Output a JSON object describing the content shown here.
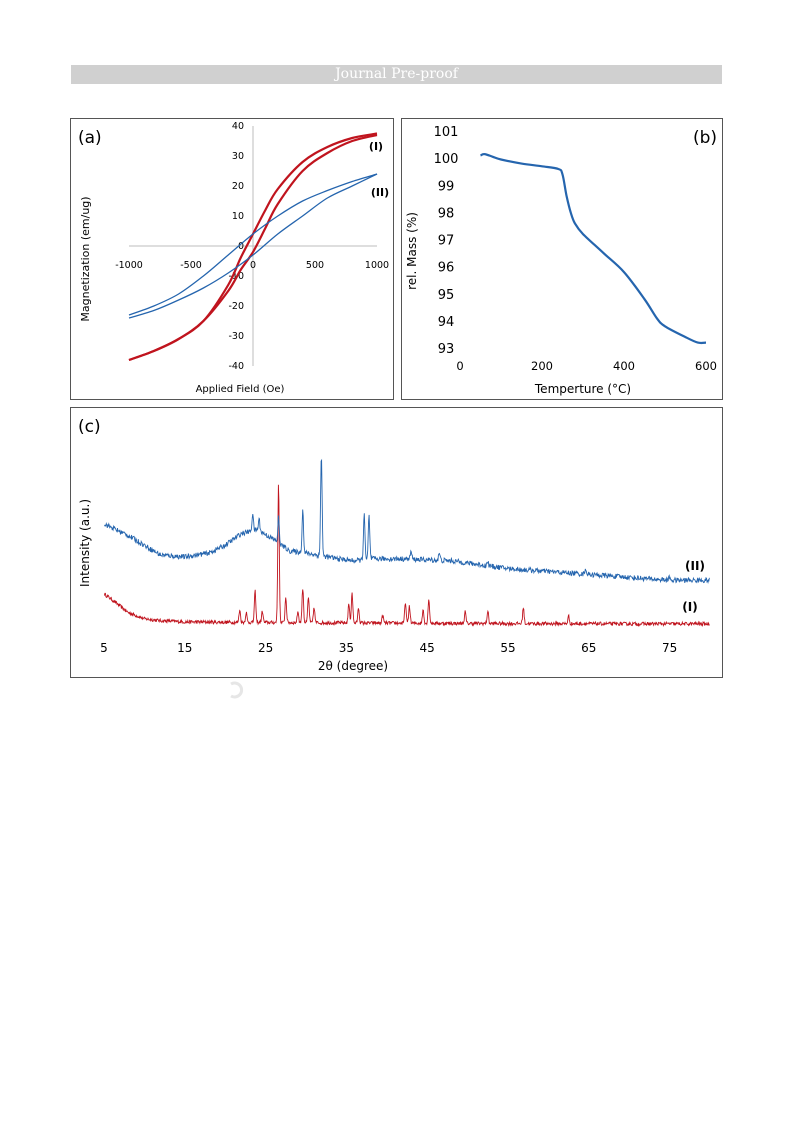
{
  "header": {
    "banner_text": "Journal Pre-proof"
  },
  "colors": {
    "series_I": "#c0141e",
    "series_II": "#2565ae",
    "banner": "#d0d0d0",
    "frame": "#555555"
  },
  "chart_data": [
    {
      "panel_label": "(a)",
      "type": "line",
      "xlabel": "Applied Field (Oe)",
      "ylabel": "Magnetization (em/ug)",
      "xlim": [
        -1000,
        1000
      ],
      "ylim": [
        -40,
        40
      ],
      "xticks": [
        -1000,
        -500,
        0,
        500,
        1000
      ],
      "xtick_labels": [
        "-1000",
        "-500",
        "0",
        "500",
        "1000"
      ],
      "yticks": [
        -40,
        -30,
        -20,
        -10,
        0,
        10,
        20,
        30,
        40
      ],
      "ytick_labels": [
        "-40",
        "-30",
        "-20",
        "-10",
        "0",
        "10",
        "20",
        "30",
        "40"
      ],
      "grid": false,
      "series": [
        {
          "name": "(I)",
          "color": "#c0141e",
          "ascending_x": [
            -1000,
            -800,
            -600,
            -400,
            -200,
            -100,
            0,
            100,
            200,
            400,
            600,
            800,
            1000
          ],
          "ascending_y": [
            -38,
            -35,
            -31,
            -25,
            -15,
            -8,
            -2,
            6,
            14,
            25,
            31,
            35,
            37
          ],
          "descending_x": [
            1000,
            800,
            600,
            400,
            200,
            100,
            0,
            -100,
            -200,
            -400,
            -600,
            -800,
            -1000
          ],
          "descending_y": [
            37.5,
            36,
            33,
            28,
            19,
            12,
            4,
            -4,
            -13,
            -25,
            -31,
            -35,
            -38
          ]
        },
        {
          "name": "(II)",
          "color": "#2565ae",
          "ascending_x": [
            -1000,
            -800,
            -600,
            -400,
            -200,
            0,
            200,
            400,
            600,
            800,
            1000
          ],
          "ascending_y": [
            -24,
            -21.5,
            -18,
            -14,
            -9,
            -3,
            4,
            10,
            16,
            20,
            24
          ],
          "descending_x": [
            1000,
            800,
            600,
            400,
            200,
            0,
            -200,
            -400,
            -600,
            -800,
            -1000
          ],
          "descending_y": [
            24,
            21.5,
            18.5,
            15,
            10,
            4,
            -3,
            -10,
            -16,
            -20,
            -23
          ]
        }
      ]
    },
    {
      "panel_label": "(b)",
      "type": "line",
      "xlabel": "Temperture (°C)",
      "ylabel": "rel. Mass (%)",
      "xlim": [
        0,
        600
      ],
      "ylim": [
        93,
        101
      ],
      "xticks": [
        0,
        200,
        400,
        600
      ],
      "xtick_labels": [
        "0",
        "200",
        "400",
        "600"
      ],
      "yticks": [
        93,
        94,
        95,
        96,
        97,
        98,
        99,
        100,
        101
      ],
      "ytick_labels": [
        "93",
        "94",
        "95",
        "96",
        "97",
        "98",
        "99",
        "100",
        "101"
      ],
      "grid": false,
      "series": [
        {
          "color": "#2565ae",
          "x": [
            50,
            60,
            80,
            100,
            150,
            200,
            240,
            250,
            260,
            270,
            280,
            300,
            350,
            400,
            450,
            480,
            500,
            550,
            580,
            600
          ],
          "y": [
            100.1,
            100.15,
            100.05,
            99.95,
            99.8,
            99.7,
            99.6,
            99.4,
            98.6,
            98.0,
            97.6,
            97.2,
            96.5,
            95.8,
            94.8,
            94.1,
            93.8,
            93.4,
            93.2,
            93.2
          ]
        }
      ]
    },
    {
      "panel_label": "(c)",
      "type": "line",
      "xlabel": "2θ (degree)",
      "ylabel": "Intensity (a.u.)",
      "xlim": [
        5,
        80
      ],
      "xticks": [
        5,
        15,
        25,
        35,
        45,
        55,
        65,
        75
      ],
      "xtick_labels": [
        "5",
        "15",
        "25",
        "35",
        "45",
        "55",
        "65",
        "75"
      ],
      "y_axis_values_shown": false,
      "grid": false,
      "series": [
        {
          "name": "(I)",
          "color": "#c0141e",
          "baseline_x": [
            5,
            6,
            8,
            10,
            12,
            15,
            20,
            30,
            40,
            50,
            60,
            70,
            80
          ],
          "baseline_y": [
            8,
            6.5,
            3.2,
            1.6,
            1.1,
            0.8,
            0.7,
            0.6,
            0.5,
            0.4,
            0.35,
            0.3,
            0.3
          ],
          "peaks": [
            [
              21.8,
              3.3
            ],
            [
              22.6,
              2.6
            ],
            [
              23.7,
              8.0
            ],
            [
              24.6,
              3.0
            ],
            [
              26.6,
              36.0
            ],
            [
              27.5,
              6.5
            ],
            [
              29.0,
              3.0
            ],
            [
              29.6,
              9.0
            ],
            [
              30.3,
              6.5
            ],
            [
              31.0,
              4.0
            ],
            [
              35.3,
              5.0
            ],
            [
              35.7,
              8.0
            ],
            [
              36.5,
              4.0
            ],
            [
              39.5,
              2.0
            ],
            [
              42.3,
              5.5
            ],
            [
              42.8,
              4.5
            ],
            [
              44.5,
              3.5
            ],
            [
              45.2,
              6.5
            ],
            [
              49.7,
              3.0
            ],
            [
              52.5,
              3.2
            ],
            [
              56.9,
              4.2
            ],
            [
              62.5,
              2.0
            ]
          ]
        },
        {
          "name": "(II)",
          "color": "#2565ae",
          "baseline_x": [
            5,
            8,
            10,
            12,
            15,
            18,
            20,
            22,
            24,
            26,
            28,
            30,
            34,
            36,
            38,
            42,
            48,
            55,
            65,
            75,
            80
          ],
          "baseline_y": [
            26,
            23,
            20.5,
            18,
            17.5,
            18.5,
            20.5,
            23.5,
            24.5,
            22,
            19,
            18.5,
            17,
            16.5,
            17,
            17,
            16.5,
            14.5,
            13,
            11.5,
            11.5
          ],
          "peaks": [
            [
              23.4,
              4.5
            ],
            [
              24.2,
              3.0
            ],
            [
              26.6,
              6.5
            ],
            [
              29.6,
              11.0
            ],
            [
              31.9,
              26.0
            ],
            [
              37.2,
              12.0
            ],
            [
              37.8,
              11.0
            ],
            [
              43.0,
              2.0
            ],
            [
              46.5,
              1.8
            ],
            [
              52.5,
              1.0
            ],
            [
              64.6,
              1.5
            ],
            [
              75.0,
              0.8
            ]
          ]
        }
      ]
    }
  ]
}
